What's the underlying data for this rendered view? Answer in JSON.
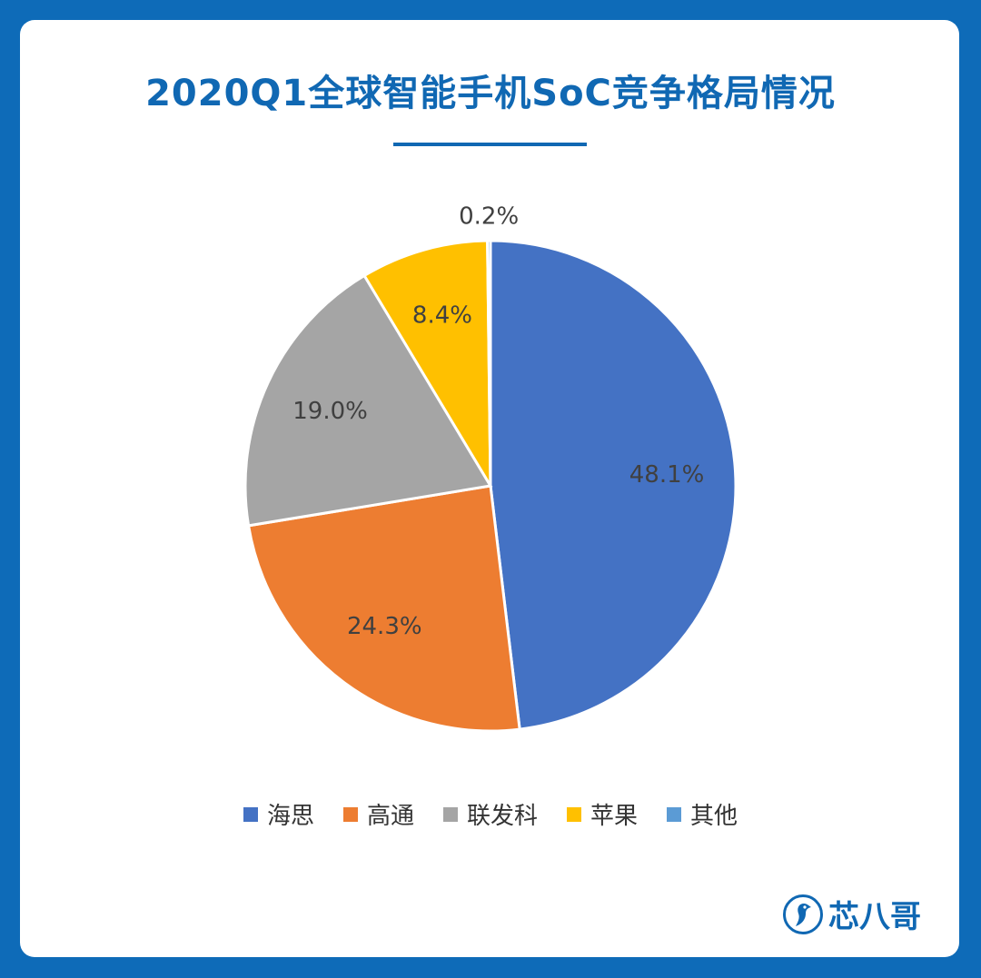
{
  "title": "2020Q1全球智能手机SoC竞争格局情况",
  "brand": {
    "name": "芯八哥",
    "icon": "bird-logo-icon"
  },
  "chart_data": {
    "type": "pie",
    "categories": [
      "海思",
      "高通",
      "联发科",
      "苹果",
      "其他"
    ],
    "values": [
      48.1,
      24.3,
      19.0,
      8.4,
      0.2
    ],
    "labels": [
      "48.1%",
      "24.3%",
      "19.0%",
      "8.4%",
      "0.2%"
    ],
    "colors": [
      "#4472c4",
      "#ed7d31",
      "#a5a5a5",
      "#ffc000",
      "#5b9bd5"
    ],
    "title": "2020Q1全球智能手机SoC竞争格局情况",
    "legend": "bottom",
    "start": "12 o'clock",
    "direction": "clockwise"
  }
}
